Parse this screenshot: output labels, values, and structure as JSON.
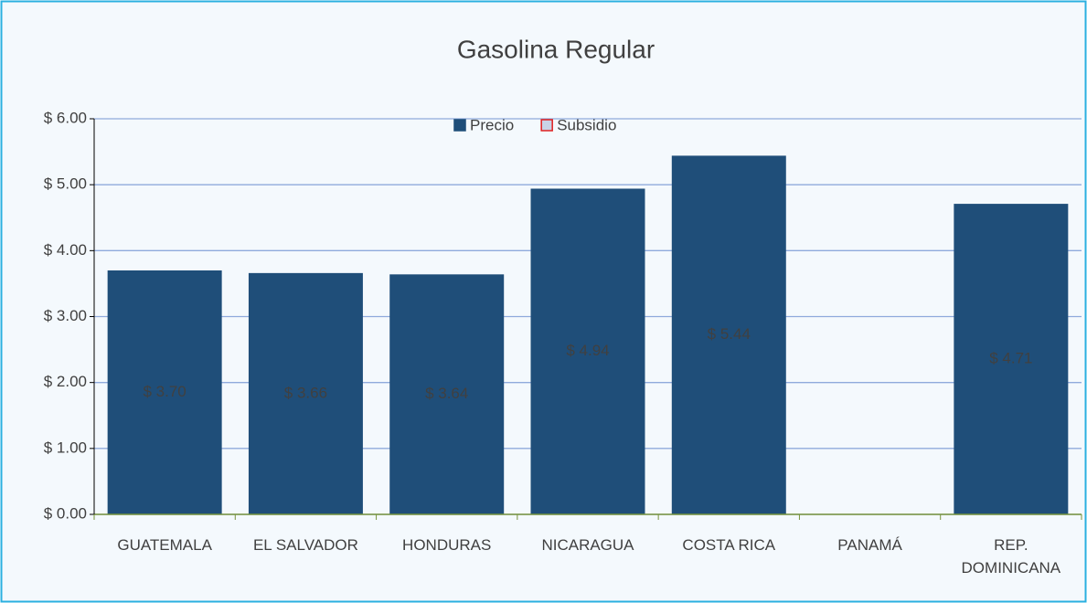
{
  "chart_data": {
    "type": "bar",
    "title": "Gasolina Regular",
    "categories": [
      "GUATEMALA",
      "EL SALVADOR",
      "HONDURAS",
      "NICARAGUA",
      "COSTA RICA",
      "PANAMÁ",
      "REP. DOMINICANA"
    ],
    "series": [
      {
        "name": "Precio",
        "color": "#1f4e79",
        "values": [
          3.7,
          3.66,
          3.64,
          4.94,
          5.44,
          null,
          4.71
        ],
        "value_labels": [
          "$ 3.70",
          "$ 3.66",
          "$ 3.64",
          "$ 4.94",
          "$ 5.44",
          null,
          "$ 4.71"
        ]
      },
      {
        "name": "Subsidio",
        "color": "#c9d3e6",
        "values": [
          0,
          0,
          0,
          0,
          0,
          null,
          0
        ]
      }
    ],
    "stacked": true,
    "ylim": [
      0,
      6
    ],
    "yticks": [
      {
        "value": 0,
        "label": "$ 0.00"
      },
      {
        "value": 1,
        "label": "$ 1.00"
      },
      {
        "value": 2,
        "label": "$ 2.00"
      },
      {
        "value": 3,
        "label": "$ 3.00"
      },
      {
        "value": 4,
        "label": "$ 4.00"
      },
      {
        "value": 5,
        "label": "$ 5.00"
      },
      {
        "value": 6,
        "label": "$ 6.00"
      }
    ],
    "grid": true,
    "legend": "top"
  }
}
